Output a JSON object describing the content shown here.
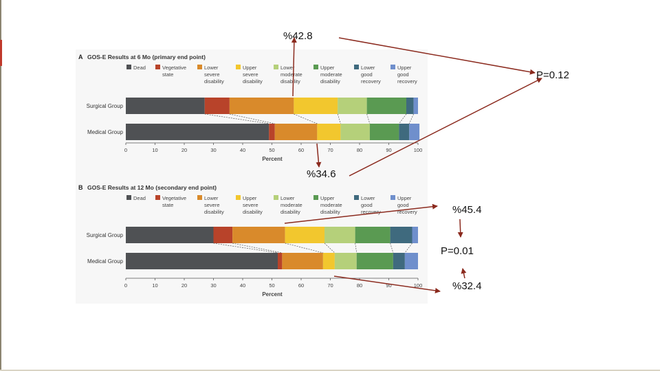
{
  "slide": {
    "annotations": {
      "a_surgical": "%42.8",
      "a_medical": "%34.6",
      "a_p": "P=0.12",
      "b_surgical": "%45.4",
      "b_p": "P=0.01",
      "b_medical": "%32.4"
    }
  },
  "legend": [
    {
      "label": "Dead",
      "color": "#4f5154"
    },
    {
      "label": "Vegetative state",
      "color": "#b8432a"
    },
    {
      "label": "Lower severe disability",
      "color": "#d98a2b"
    },
    {
      "label": "Upper severe disability",
      "color": "#f2c72e"
    },
    {
      "label": "Lower moderate disability",
      "color": "#b5d07a"
    },
    {
      "label": "Upper moderate disability",
      "color": "#5a9a52"
    },
    {
      "label": "Lower good recovery",
      "color": "#3f6a7e"
    },
    {
      "label": "Upper good recovery",
      "color": "#6f8fcc"
    }
  ],
  "colors": {
    "annotation_arrow": "#8b2a1e",
    "connector": "#555555"
  },
  "chart_data": [
    {
      "type": "bar",
      "orientation": "horizontal-stacked",
      "panel": "A",
      "title": "GOS-E Results at 6 Mo (primary end point)",
      "xlabel": "Percent",
      "xlim": [
        0,
        100
      ],
      "xticks": [
        0,
        10,
        20,
        30,
        40,
        50,
        60,
        70,
        80,
        90,
        100
      ],
      "categories": [
        "Surgical Group",
        "Medical Group"
      ],
      "series": [
        {
          "name": "Dead",
          "values": [
            27,
            49
          ]
        },
        {
          "name": "Vegetative state",
          "values": [
            8.5,
            2
          ]
        },
        {
          "name": "Lower severe disability",
          "values": [
            22,
            14.5
          ]
        },
        {
          "name": "Upper severe disability",
          "values": [
            15,
            8
          ]
        },
        {
          "name": "Lower moderate disability",
          "values": [
            10,
            10
          ]
        },
        {
          "name": "Upper moderate disability",
          "values": [
            13.5,
            10
          ]
        },
        {
          "name": "Lower good recovery",
          "values": [
            2.5,
            3.5
          ]
        },
        {
          "name": "Upper good recovery",
          "values": [
            1.5,
            3.5
          ]
        }
      ]
    },
    {
      "type": "bar",
      "orientation": "horizontal-stacked",
      "panel": "B",
      "title": "GOS-E Results at 12 Mo (secondary end point)",
      "xlabel": "Percent",
      "xlim": [
        0,
        100
      ],
      "xticks": [
        0,
        10,
        20,
        30,
        40,
        50,
        60,
        70,
        80,
        90,
        100
      ],
      "categories": [
        "Surgical Group",
        "Medical Group"
      ],
      "series": [
        {
          "name": "Dead",
          "values": [
            30,
            52
          ]
        },
        {
          "name": "Vegetative state",
          "values": [
            6.5,
            1.5
          ]
        },
        {
          "name": "Lower severe disability",
          "values": [
            18,
            14
          ]
        },
        {
          "name": "Upper severe disability",
          "values": [
            13.5,
            4
          ]
        },
        {
          "name": "Lower moderate disability",
          "values": [
            10.5,
            7.5
          ]
        },
        {
          "name": "Upper moderate disability",
          "values": [
            12,
            12.5
          ]
        },
        {
          "name": "Lower good recovery",
          "values": [
            7.5,
            4
          ]
        },
        {
          "name": "Upper good recovery",
          "values": [
            2,
            4.5
          ]
        }
      ]
    }
  ]
}
